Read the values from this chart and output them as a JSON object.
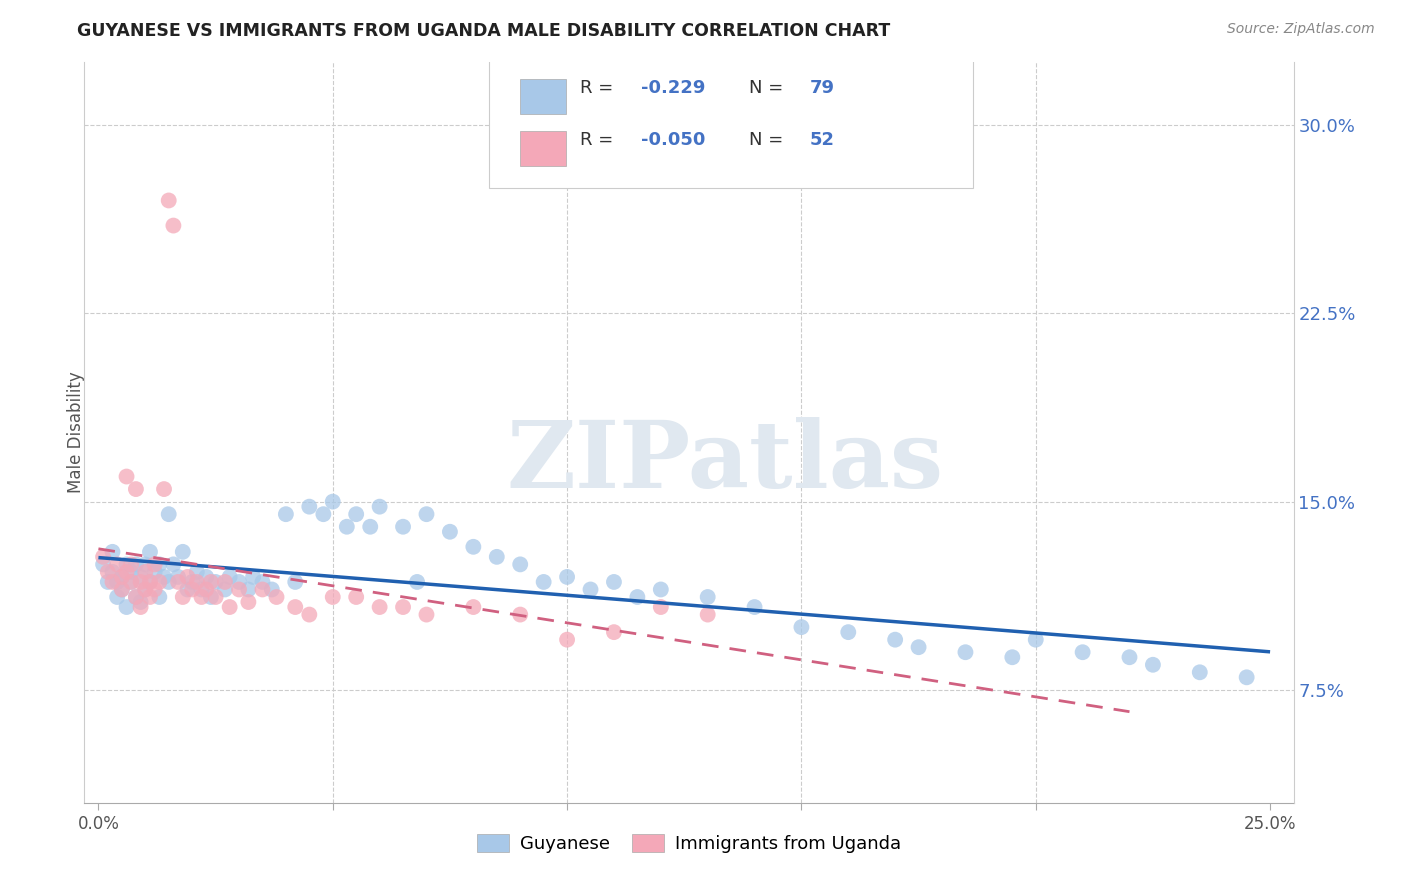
{
  "title": "GUYANESE VS IMMIGRANTS FROM UGANDA MALE DISABILITY CORRELATION CHART",
  "source": "Source: ZipAtlas.com",
  "ylabel": "Male Disability",
  "xlim": [
    -0.003,
    0.255
  ],
  "ylim": [
    0.03,
    0.325
  ],
  "xtick_positions": [
    0.0,
    0.05,
    0.1,
    0.15,
    0.2,
    0.25
  ],
  "xticklabels": [
    "0.0%",
    "",
    "",
    "",
    "",
    "25.0%"
  ],
  "ytick_right_positions": [
    0.075,
    0.15,
    0.225,
    0.3
  ],
  "ytick_right_labels": [
    "7.5%",
    "15.0%",
    "22.5%",
    "30.0%"
  ],
  "ytick_grid_positions": [
    0.075,
    0.15,
    0.225,
    0.3
  ],
  "legend_blue_r": "-0.229",
  "legend_blue_n": "79",
  "legend_pink_r": "-0.050",
  "legend_pink_n": "52",
  "blue_color": "#a8c8e8",
  "pink_color": "#f4a8b8",
  "blue_line_color": "#2060b0",
  "pink_line_color": "#d06080",
  "watermark_text": "ZIPatlas",
  "watermark_color": "#e0e8f0",
  "legend_text_color": "#4472c4",
  "blue_scatter_x": [
    0.001,
    0.002,
    0.003,
    0.003,
    0.004,
    0.004,
    0.005,
    0.005,
    0.006,
    0.006,
    0.007,
    0.007,
    0.008,
    0.008,
    0.009,
    0.009,
    0.01,
    0.01,
    0.011,
    0.011,
    0.012,
    0.013,
    0.013,
    0.014,
    0.015,
    0.015,
    0.016,
    0.017,
    0.018,
    0.019,
    0.02,
    0.021,
    0.022,
    0.023,
    0.024,
    0.025,
    0.027,
    0.028,
    0.03,
    0.032,
    0.033,
    0.035,
    0.037,
    0.04,
    0.042,
    0.045,
    0.048,
    0.05,
    0.053,
    0.055,
    0.058,
    0.06,
    0.065,
    0.068,
    0.07,
    0.075,
    0.08,
    0.085,
    0.09,
    0.095,
    0.1,
    0.105,
    0.11,
    0.115,
    0.12,
    0.13,
    0.14,
    0.15,
    0.16,
    0.17,
    0.175,
    0.185,
    0.195,
    0.2,
    0.21,
    0.22,
    0.225,
    0.235,
    0.245
  ],
  "blue_scatter_y": [
    0.125,
    0.118,
    0.122,
    0.13,
    0.118,
    0.112,
    0.12,
    0.115,
    0.125,
    0.108,
    0.118,
    0.122,
    0.125,
    0.112,
    0.12,
    0.11,
    0.125,
    0.115,
    0.13,
    0.118,
    0.122,
    0.125,
    0.112,
    0.12,
    0.145,
    0.118,
    0.125,
    0.12,
    0.13,
    0.115,
    0.118,
    0.122,
    0.115,
    0.12,
    0.112,
    0.118,
    0.115,
    0.12,
    0.118,
    0.115,
    0.12,
    0.118,
    0.115,
    0.145,
    0.118,
    0.148,
    0.145,
    0.15,
    0.14,
    0.145,
    0.14,
    0.148,
    0.14,
    0.118,
    0.145,
    0.138,
    0.132,
    0.128,
    0.125,
    0.118,
    0.12,
    0.115,
    0.118,
    0.112,
    0.115,
    0.112,
    0.108,
    0.1,
    0.098,
    0.095,
    0.092,
    0.09,
    0.088,
    0.095,
    0.09,
    0.088,
    0.085,
    0.082,
    0.08
  ],
  "pink_scatter_x": [
    0.001,
    0.002,
    0.003,
    0.004,
    0.005,
    0.005,
    0.006,
    0.006,
    0.007,
    0.007,
    0.008,
    0.008,
    0.009,
    0.009,
    0.01,
    0.01,
    0.011,
    0.011,
    0.012,
    0.012,
    0.013,
    0.014,
    0.015,
    0.016,
    0.017,
    0.018,
    0.019,
    0.02,
    0.021,
    0.022,
    0.023,
    0.024,
    0.025,
    0.027,
    0.028,
    0.03,
    0.032,
    0.035,
    0.038,
    0.042,
    0.045,
    0.05,
    0.055,
    0.06,
    0.065,
    0.07,
    0.08,
    0.09,
    0.1,
    0.11,
    0.12,
    0.13
  ],
  "pink_scatter_y": [
    0.128,
    0.122,
    0.118,
    0.125,
    0.12,
    0.115,
    0.16,
    0.122,
    0.118,
    0.125,
    0.155,
    0.112,
    0.118,
    0.108,
    0.122,
    0.115,
    0.118,
    0.112,
    0.125,
    0.115,
    0.118,
    0.155,
    0.27,
    0.26,
    0.118,
    0.112,
    0.12,
    0.115,
    0.118,
    0.112,
    0.115,
    0.118,
    0.112,
    0.118,
    0.108,
    0.115,
    0.11,
    0.115,
    0.112,
    0.108,
    0.105,
    0.112,
    0.112,
    0.108,
    0.108,
    0.105,
    0.108,
    0.105,
    0.095,
    0.098,
    0.108,
    0.105
  ]
}
